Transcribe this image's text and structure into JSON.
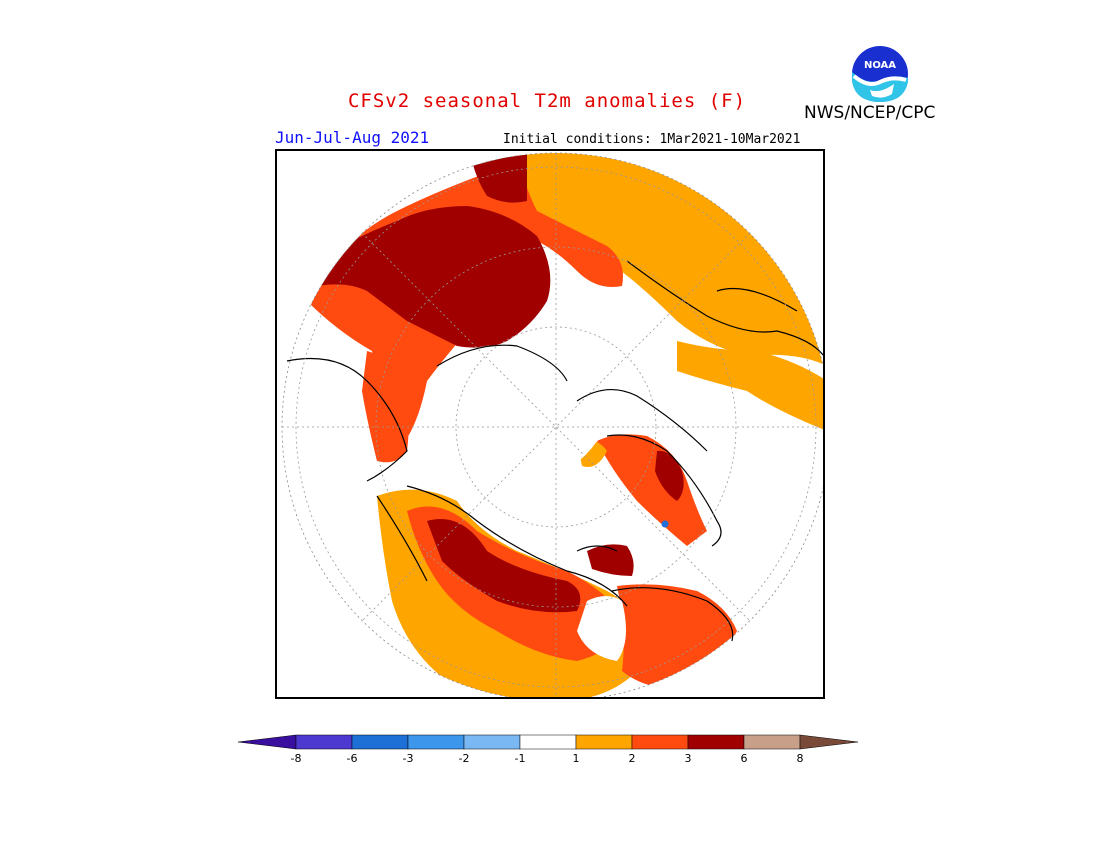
{
  "title": "CFSv2 seasonal T2m anomalies (F)",
  "period": "Jun-Jul-Aug 2021",
  "initial_conditions": "Initial conditions: 1Mar2021-10Mar2021",
  "agency": "NWS/NCEP/CPC",
  "logo_text": "NOAA",
  "colorbar": {
    "ticks": [
      "-8",
      "-6",
      "-3",
      "-2",
      "-1",
      "1",
      "2",
      "3",
      "6",
      "8"
    ],
    "colors": [
      "#3a0fa0",
      "#4d38d0",
      "#1e6fd6",
      "#3c96ec",
      "#7ab8f4",
      "#ffffff",
      "#ffa500",
      "#ff4a10",
      "#a00000",
      "#c8a08a",
      "#7a4a38"
    ]
  },
  "map": {
    "projection": "north-polar-stereographic",
    "colors": {
      "c1_2": "#ffa500",
      "c2_3": "#ff4a10",
      "c3_6": "#a00000",
      "land_outline": "#000000"
    }
  }
}
